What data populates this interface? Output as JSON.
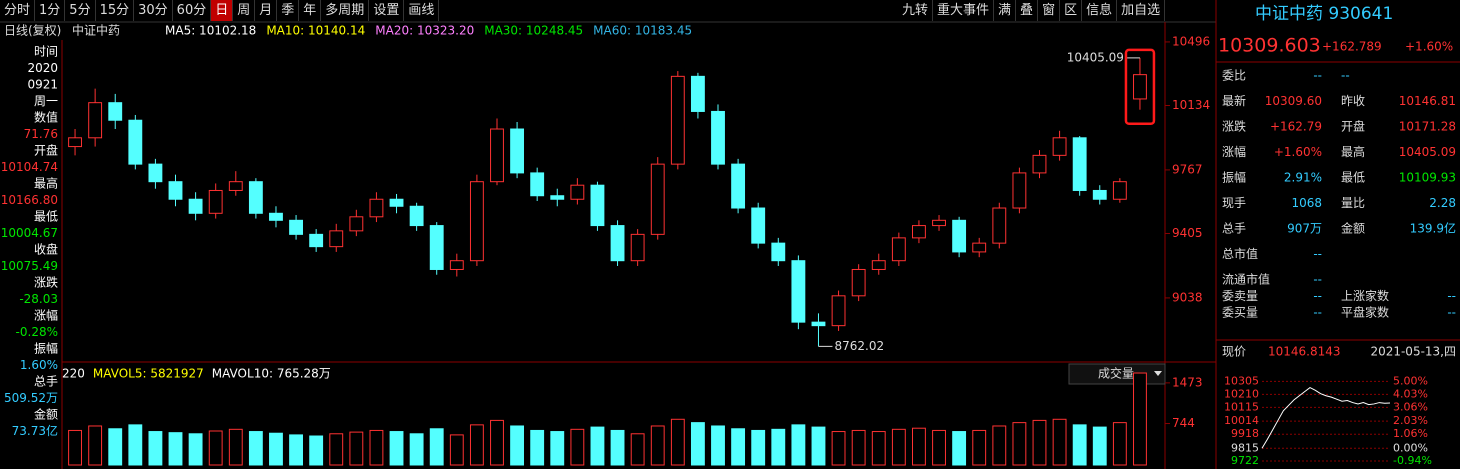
{
  "toolbar": {
    "left": [
      "分时",
      "1分",
      "5分",
      "15分",
      "30分",
      "60分",
      "日",
      "周",
      "月",
      "季",
      "年",
      "多周期",
      "设置",
      "画线"
    ],
    "active": 6,
    "right": [
      "九转",
      "重大事件",
      "满",
      "叠",
      "窗",
      "区",
      "信息",
      "加自选"
    ]
  },
  "header": {
    "period": "日线(复权)",
    "name": "中证中药",
    "ma": [
      {
        "text": "MA5: 10102.18",
        "color": "#ffffff"
      },
      {
        "text": "MA10: 10140.14",
        "color": "#ffff00"
      },
      {
        "text": "MA20: 10323.20",
        "color": "#ff80ff"
      },
      {
        "text": "MA30: 10248.45",
        "color": "#00e600"
      },
      {
        "text": "MA60: 10183.45",
        "color": "#33b5e5"
      }
    ]
  },
  "left_panel": {
    "items": [
      {
        "text": "时间",
        "color": "#ffffff"
      },
      {
        "text": "2020",
        "color": "#ffffff"
      },
      {
        "text": "0921",
        "color": "#ffffff"
      },
      {
        "text": "周一",
        "color": "#ffffff"
      },
      {
        "text": "数值",
        "color": "#ffffff"
      },
      {
        "text": "71.76",
        "color": "#ff3232"
      },
      {
        "text": "开盘",
        "color": "#ffffff"
      },
      {
        "text": "10104.74",
        "color": "#ff3232"
      },
      {
        "text": "最高",
        "color": "#ffffff"
      },
      {
        "text": "10166.80",
        "color": "#ff3232"
      },
      {
        "text": "最低",
        "color": "#ffffff"
      },
      {
        "text": "10004.67",
        "color": "#00e600"
      },
      {
        "text": "收盘",
        "color": "#ffffff"
      },
      {
        "text": "10075.49",
        "color": "#00e600"
      },
      {
        "text": "涨跌",
        "color": "#ffffff"
      },
      {
        "text": "-28.03",
        "color": "#00e600"
      },
      {
        "text": "涨幅",
        "color": "#ffffff"
      },
      {
        "text": "-0.28%",
        "color": "#00e600"
      },
      {
        "text": "振幅",
        "color": "#ffffff"
      },
      {
        "text": "1.60%",
        "color": "#33ccff"
      },
      {
        "text": "总手",
        "color": "#ffffff"
      },
      {
        "text": "509.52万",
        "color": "#33ccff"
      },
      {
        "text": "金额",
        "color": "#ffffff"
      },
      {
        "text": "73.73亿",
        "color": "#33ccff"
      }
    ]
  },
  "volume_header": {
    "items": [
      {
        "text": "220",
        "color": "#ffffff"
      },
      {
        "text": "MAVOL5: 5821927",
        "color": "#ffff00"
      },
      {
        "text": "MAVOL10: 765.28万",
        "color": "#ffffff"
      }
    ],
    "selector": "成交量"
  },
  "quote": {
    "title": "中证中药 930641",
    "price": "10309.603",
    "change": "+162.789",
    "pct": "+1.60%",
    "rows": [
      [
        "委比",
        "--",
        "--",
        ""
      ],
      [
        "最新",
        "10309.60",
        "昨收",
        "10146.81"
      ],
      [
        "涨跌",
        "+162.79",
        "开盘",
        "10171.28"
      ],
      [
        "涨幅",
        "+1.60%",
        "最高",
        "10405.09"
      ],
      [
        "振幅",
        "2.91%",
        "最低",
        "10109.93"
      ],
      [
        "现手",
        "1068",
        "量比",
        "2.28"
      ],
      [
        "总手",
        "907万",
        "金额",
        "139.9亿"
      ],
      [
        "总市值",
        "--",
        "",
        ""
      ],
      [
        "流通市值",
        "--",
        "",
        ""
      ],
      [
        "委卖量",
        "--",
        "上涨家数",
        "--"
      ],
      [
        "委买量",
        "--",
        "平盘家数",
        "--"
      ]
    ],
    "now_label": "现价",
    "now_value": "10146.8143",
    "date": "2021-05-13,四"
  },
  "chart_data": [
    {
      "type": "candlestick",
      "ylim": [
        8673,
        10507
      ],
      "yticks": [
        10496,
        10134,
        9767,
        9405,
        9038
      ],
      "open": [
        9900,
        9950,
        10150,
        10050,
        9800,
        9700,
        9600,
        9520,
        9650,
        9700,
        9520,
        9480,
        9400,
        9330,
        9420,
        9500,
        9600,
        9560,
        9450,
        9200,
        9250,
        9700,
        10000,
        9750,
        9620,
        9600,
        9680,
        9450,
        9250,
        9400,
        9800,
        10300,
        10100,
        9800,
        9550,
        9350,
        9250,
        8900,
        8880,
        9050,
        9200,
        9250,
        9380,
        9450,
        9480,
        9300,
        9350,
        9550,
        9750,
        9850,
        9950,
        9650,
        9600,
        10171.28
      ],
      "high": [
        10000,
        10230,
        10200,
        10080,
        9830,
        9740,
        9640,
        9690,
        9760,
        9720,
        9560,
        9510,
        9430,
        9460,
        9540,
        9640,
        9630,
        9580,
        9470,
        9290,
        9740,
        10060,
        10040,
        9780,
        9660,
        9720,
        9700,
        9480,
        9430,
        9840,
        10330,
        10320,
        10140,
        9830,
        9580,
        9380,
        9280,
        8950,
        9080,
        9230,
        9290,
        9410,
        9480,
        9510,
        9500,
        9380,
        9580,
        9780,
        9880,
        9990,
        9960,
        9680,
        9720,
        10405.09
      ],
      "low": [
        9850,
        9900,
        10000,
        9770,
        9660,
        9560,
        9480,
        9490,
        9620,
        9490,
        9440,
        9370,
        9300,
        9300,
        9390,
        9470,
        9520,
        9420,
        9170,
        9160,
        9220,
        9680,
        9720,
        9590,
        9560,
        9570,
        9420,
        9220,
        9220,
        9370,
        9770,
        10060,
        9770,
        9520,
        9320,
        9220,
        8860,
        8762.02,
        8850,
        9020,
        9170,
        9220,
        9350,
        9420,
        9270,
        9270,
        9320,
        9520,
        9720,
        9820,
        9620,
        9570,
        9580,
        10109.93
      ],
      "close": [
        9950,
        10150,
        10050,
        9800,
        9700,
        9600,
        9520,
        9650,
        9700,
        9520,
        9480,
        9400,
        9330,
        9420,
        9500,
        9600,
        9560,
        9450,
        9200,
        9250,
        9700,
        10000,
        9750,
        9620,
        9600,
        9680,
        9450,
        9250,
        9400,
        9800,
        10300,
        10100,
        9800,
        9550,
        9350,
        9250,
        8900,
        8880,
        9050,
        9200,
        9250,
        9380,
        9450,
        9480,
        9300,
        9350,
        9550,
        9750,
        9850,
        9950,
        9650,
        9600,
        9700,
        10309.6
      ],
      "up_color": "#ff3232",
      "down_color": "#54ffff"
    },
    {
      "type": "bar",
      "ylim": [
        0,
        1740
      ],
      "yticks": [
        1473,
        744
      ],
      "values": [
        620,
        700,
        650,
        720,
        600,
        580,
        560,
        610,
        640,
        600,
        570,
        540,
        520,
        560,
        590,
        620,
        600,
        560,
        650,
        540,
        720,
        800,
        700,
        620,
        600,
        640,
        680,
        620,
        560,
        700,
        820,
        760,
        700,
        650,
        620,
        640,
        720,
        680,
        600,
        620,
        600,
        640,
        660,
        620,
        600,
        620,
        700,
        760,
        800,
        820,
        720,
        680,
        760,
        1650
      ]
    },
    {
      "type": "line",
      "ylim": [
        9700,
        10330
      ],
      "yticks": [
        10305,
        10210,
        10115,
        10014,
        9918,
        9815,
        9722
      ],
      "y2lim": [
        -1.16,
        5.25
      ],
      "y2ticks": [
        {
          "value": 5,
          "label": "5.00%"
        },
        {
          "value": 4.03,
          "label": "4.03%"
        },
        {
          "value": 3.06,
          "label": "3.06%"
        },
        {
          "value": 2.03,
          "label": "2.03%"
        },
        {
          "value": 1.06,
          "label": "1.06%"
        },
        {
          "value": 0,
          "label": "0.00%"
        },
        {
          "value": -0.94,
          "label": "-0.94%"
        }
      ],
      "values": [
        9815,
        9880,
        9950,
        10020,
        10090,
        10130,
        10170,
        10200,
        10230,
        10260,
        10240,
        10215,
        10200,
        10190,
        10175,
        10160,
        10165,
        10150,
        10140,
        10150,
        10135,
        10140,
        10150,
        10145,
        10147
      ],
      "color": "#ffffff"
    }
  ]
}
